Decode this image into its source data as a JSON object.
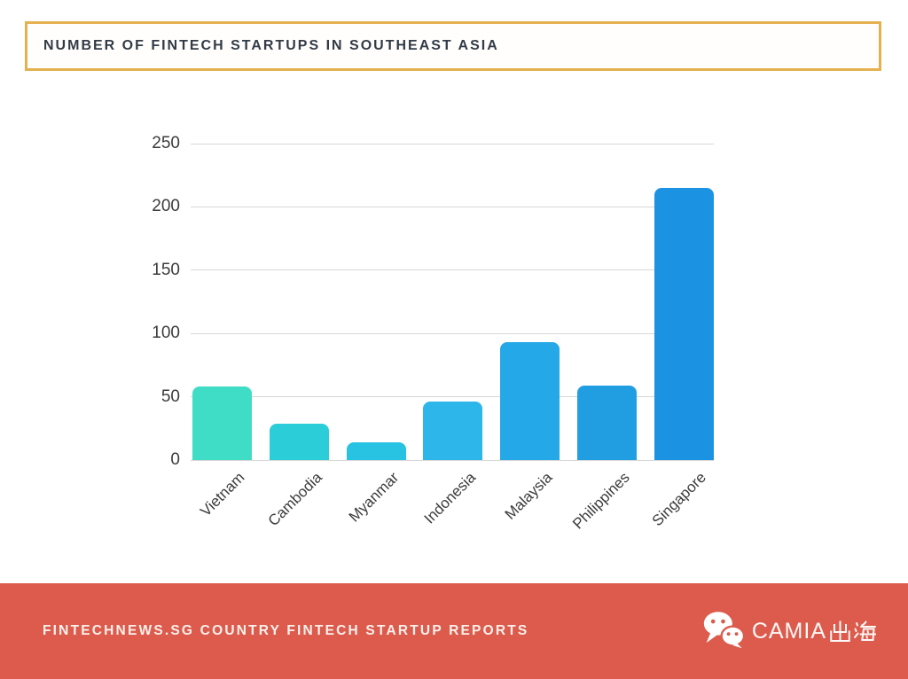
{
  "title": {
    "text": "NUMBER OF FINTECH STARTUPS IN SOUTHEAST ASIA"
  },
  "chart_data": {
    "type": "bar",
    "title": "NUMBER OF FINTECH STARTUPS IN SOUTHEAST ASIA",
    "categories": [
      "Vietnam",
      "Cambodia",
      "Myanmar",
      "Indonesia",
      "Malaysia",
      "Philippines",
      "Singapore"
    ],
    "values": [
      58,
      29,
      14,
      46,
      93,
      59,
      215
    ],
    "bar_colors": [
      "#3FDCC6",
      "#2BCED8",
      "#28C2E2",
      "#2DB6EA",
      "#25A8E7",
      "#219EE2",
      "#1C93E2"
    ],
    "xlabel": "",
    "ylabel": "",
    "ylim": [
      0,
      250
    ],
    "yticks": [
      0,
      50,
      100,
      150,
      200,
      250
    ],
    "grid": true,
    "gridline_color": "#D8D8D8",
    "tick_label_color": "#3C3C3C",
    "legend": "none",
    "x_tick_rotation_deg": -45
  },
  "footer": {
    "text": "FINTECHNEWS.SG COUNTRY FINTECH STARTUP REPORTS",
    "brand": "CAMIA出海",
    "brand_latin": "CAMIA",
    "background": "#DC5B4D",
    "text_color": "#FBF1EC",
    "wechat_icon": "wechat-logo"
  },
  "colors": {
    "title_border": "#E4B14E",
    "title_text": "#323B46",
    "page_background": "#FFFFFF"
  }
}
